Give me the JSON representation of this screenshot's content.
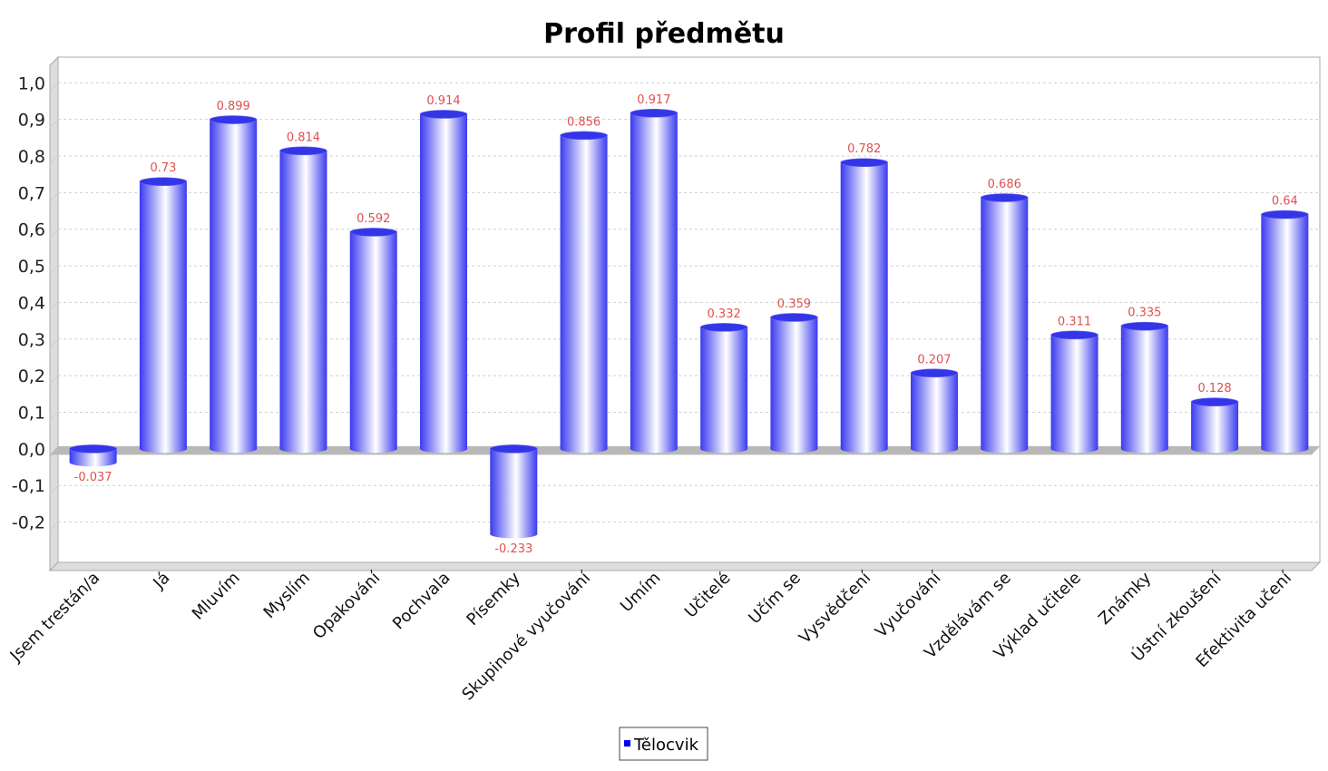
{
  "chart_data": {
    "type": "bar",
    "title": "Profil předmětu",
    "xlabel": "",
    "ylabel": "",
    "categories": [
      "Jsem trestán/a",
      "Já",
      "Mluvím",
      "Myslím",
      "Opakování",
      "Pochvala",
      "Písemky",
      "Skupinové vyučování",
      "Umím",
      "Učitelé",
      "Učím se",
      "Vysvědčení",
      "Vyučování",
      "Vzdělávám se",
      "Výklad učitele",
      "Známky",
      "Ústní zkoušení",
      "Efektivita učení"
    ],
    "series": [
      {
        "name": "Tělocvik",
        "values": [
          -0.037,
          0.73,
          0.899,
          0.814,
          0.592,
          0.914,
          -0.233,
          0.856,
          0.917,
          0.332,
          0.359,
          0.782,
          0.207,
          0.686,
          0.311,
          0.335,
          0.128,
          0.64
        ],
        "data_labels": [
          "-0.037",
          "0.73",
          "0.899",
          "0.814",
          "0.592",
          "0.914",
          "-0.233",
          "0.856",
          "0.917",
          "0.332",
          "0.359",
          "0.782",
          "0.207",
          "0.686",
          "0.311",
          "0.335",
          "0.128",
          "0.64"
        ]
      }
    ],
    "y_ticks": [
      -0.2,
      -0.1,
      0.0,
      0.1,
      0.2,
      0.3,
      0.4,
      0.5,
      0.6,
      0.7,
      0.8,
      0.9,
      1.0
    ],
    "y_tick_labels": [
      "-0,2",
      "-0,1",
      "0,0",
      "0,1",
      "0,2",
      "0,3",
      "0,4",
      "0,5",
      "0,6",
      "0,7",
      "0,8",
      "0,9",
      "1,0"
    ],
    "ylim": [
      -0.31,
      1.07
    ],
    "grid": true,
    "legend": "bottom",
    "bar_style": "3d-cylinder"
  },
  "colors": {
    "bar_dark": "#3a3af0",
    "bar_light": "#ffffff",
    "bar_cap": "#3535e8",
    "data_label": "#e05050",
    "grid": "#cfcfcf",
    "zero_band": "#b8b8b8",
    "plot_border": "#aaaaaa",
    "wall": "#dddddd",
    "legend_marker": "#0000ff"
  }
}
